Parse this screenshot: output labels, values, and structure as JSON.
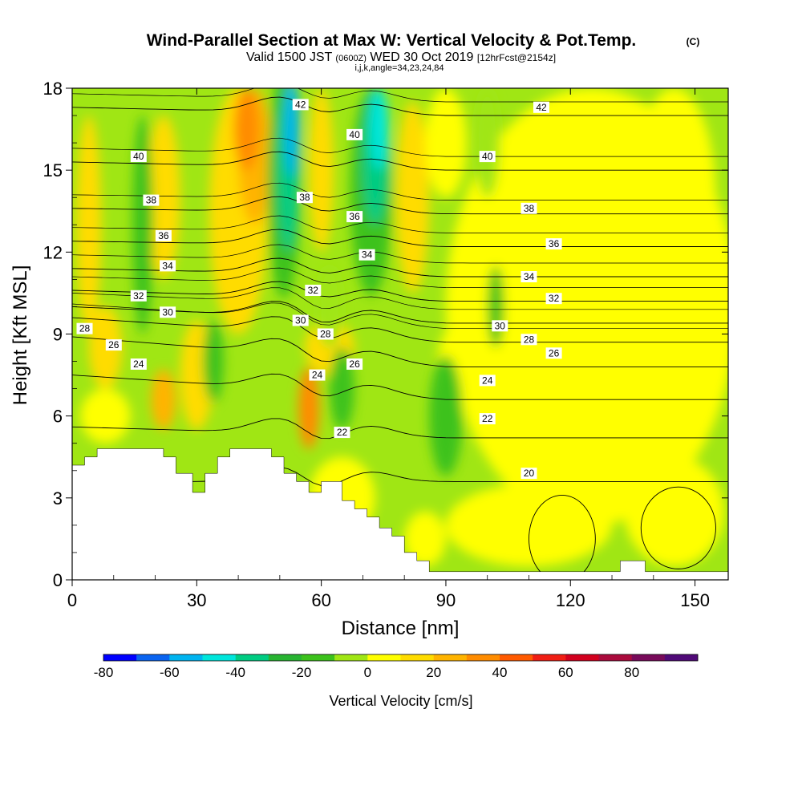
{
  "header": {
    "title": "Wind-Parallel Section at Max W: Vertical Velocity & Pot.Temp.",
    "copyright": "(C)",
    "valid_prefix": "Valid 1500 JST",
    "valid_zulu": "(0600Z)",
    "valid_date": "WED 30 Oct 2019",
    "forecast": "[12hrFcst@2154z]",
    "indices": "i,j,k,angle=34,23,24,84"
  },
  "chart_data": {
    "type": "heatmap",
    "xlabel": "Distance [nm]",
    "ylabel": "Height [Kft MSL]",
    "xlim": [
      0,
      158
    ],
    "ylim": [
      0,
      18
    ],
    "x_ticks": [
      0,
      30,
      60,
      90,
      120,
      150
    ],
    "x_tick_labels": [
      "0",
      "30",
      "60",
      "90",
      "120",
      "150"
    ],
    "y_ticks": [
      0,
      3,
      6,
      9,
      12,
      15,
      18
    ],
    "y_tick_labels": [
      "0",
      "3",
      "6",
      "9",
      "12",
      "15",
      "18"
    ],
    "colorbar": {
      "label": "Vertical Velocity [cm/s]",
      "levels": [
        -80,
        -70,
        -60,
        -50,
        -40,
        -30,
        -20,
        -10,
        0,
        10,
        20,
        30,
        40,
        50,
        60,
        70,
        80,
        90
      ],
      "tick_values": [
        -80,
        -60,
        -40,
        -20,
        0,
        20,
        40,
        60,
        80
      ],
      "tick_labels": [
        "-80",
        "-60",
        "-40",
        "-20",
        "0",
        "20",
        "40",
        "60",
        "80"
      ],
      "colors": [
        "#0000ff",
        "#0a64f0",
        "#00b4f0",
        "#00e6dc",
        "#00cc82",
        "#28b432",
        "#3cc21c",
        "#a0e614",
        "#ffff00",
        "#ffdc00",
        "#ffb400",
        "#ff8c00",
        "#ff5a00",
        "#f01e14",
        "#d2001e",
        "#aa0a3c",
        "#780a5a",
        "#500a78"
      ]
    },
    "field": {
      "variable": "vertical velocity (cm/s)",
      "background": "10 to 0 band (light green) above the terrain, weak ascent band (yellow) east of x=90",
      "notable_features": [
        {
          "x": 52,
          "y_range": [
            9,
            18
          ],
          "w_min": -50,
          "note": "strong downdraft column"
        },
        {
          "x": 73,
          "y_range": [
            10,
            18
          ],
          "w_min": -40,
          "note": "downdraft column"
        },
        {
          "x": 42,
          "y_range": [
            11,
            18
          ],
          "w_max": 40,
          "note": "updraft column"
        },
        {
          "x": 23,
          "y_range": [
            5,
            8
          ],
          "w_max": 30,
          "note": "low-level updraft over ridge"
        },
        {
          "x": 57,
          "y_range": [
            5,
            8
          ],
          "w_max": 40,
          "note": "updraft over terrain"
        }
      ]
    },
    "contours": {
      "variable": "potential temperature (C)",
      "levels": [
        20,
        22,
        24,
        26,
        28,
        30,
        32,
        34,
        36,
        38,
        40,
        42
      ],
      "labels": [
        {
          "text": "42",
          "x": 55,
          "y": 17.4
        },
        {
          "text": "42",
          "x": 113,
          "y": 17.3
        },
        {
          "text": "40",
          "x": 16,
          "y": 15.5
        },
        {
          "text": "40",
          "x": 68,
          "y": 16.3
        },
        {
          "text": "40",
          "x": 100,
          "y": 15.5
        },
        {
          "text": "38",
          "x": 19,
          "y": 13.9
        },
        {
          "text": "38",
          "x": 56,
          "y": 14.0
        },
        {
          "text": "38",
          "x": 110,
          "y": 13.6
        },
        {
          "text": "36",
          "x": 22,
          "y": 12.6
        },
        {
          "text": "36",
          "x": 68,
          "y": 13.3
        },
        {
          "text": "36",
          "x": 116,
          "y": 12.3
        },
        {
          "text": "34",
          "x": 23,
          "y": 11.5
        },
        {
          "text": "34",
          "x": 71,
          "y": 11.9
        },
        {
          "text": "34",
          "x": 110,
          "y": 11.1
        },
        {
          "text": "32",
          "x": 16,
          "y": 10.4
        },
        {
          "text": "32",
          "x": 58,
          "y": 10.6
        },
        {
          "text": "32",
          "x": 116,
          "y": 10.3
        },
        {
          "text": "30",
          "x": 23,
          "y": 9.8
        },
        {
          "text": "30",
          "x": 55,
          "y": 9.5
        },
        {
          "text": "30",
          "x": 103,
          "y": 9.3
        },
        {
          "text": "28",
          "x": 3,
          "y": 9.2
        },
        {
          "text": "28",
          "x": 61,
          "y": 9.0
        },
        {
          "text": "28",
          "x": 110,
          "y": 8.8
        },
        {
          "text": "26",
          "x": 10,
          "y": 8.6
        },
        {
          "text": "26",
          "x": 68,
          "y": 7.9
        },
        {
          "text": "26",
          "x": 116,
          "y": 8.3
        },
        {
          "text": "24",
          "x": 16,
          "y": 7.9
        },
        {
          "text": "24",
          "x": 59,
          "y": 7.5
        },
        {
          "text": "24",
          "x": 100,
          "y": 7.3
        },
        {
          "text": "22",
          "x": 65,
          "y": 5.4
        },
        {
          "text": "22",
          "x": 100,
          "y": 5.9
        },
        {
          "text": "20",
          "x": 110,
          "y": 3.9
        }
      ]
    },
    "terrain": {
      "profile": [
        [
          0,
          4.2
        ],
        [
          3,
          4.2
        ],
        [
          3,
          4.5
        ],
        [
          6,
          4.5
        ],
        [
          6,
          4.8
        ],
        [
          22,
          4.8
        ],
        [
          22,
          4.5
        ],
        [
          25,
          4.5
        ],
        [
          25,
          3.9
        ],
        [
          29,
          3.9
        ],
        [
          29,
          3.2
        ],
        [
          32,
          3.2
        ],
        [
          32,
          3.9
        ],
        [
          35,
          3.9
        ],
        [
          35,
          4.5
        ],
        [
          38,
          4.5
        ],
        [
          38,
          4.8
        ],
        [
          48,
          4.8
        ],
        [
          48,
          4.5
        ],
        [
          51,
          4.5
        ],
        [
          51,
          3.9
        ],
        [
          54,
          3.9
        ],
        [
          54,
          3.6
        ],
        [
          57,
          3.6
        ],
        [
          57,
          3.2
        ],
        [
          60,
          3.2
        ],
        [
          60,
          3.6
        ],
        [
          65,
          3.6
        ],
        [
          65,
          2.9
        ],
        [
          68,
          2.9
        ],
        [
          68,
          2.6
        ],
        [
          71,
          2.6
        ],
        [
          71,
          2.3
        ],
        [
          74,
          2.3
        ],
        [
          74,
          1.9
        ],
        [
          77,
          1.9
        ],
        [
          77,
          1.6
        ],
        [
          80,
          1.6
        ],
        [
          80,
          1.0
        ],
        [
          83,
          1.0
        ],
        [
          83,
          0.7
        ],
        [
          86,
          0.7
        ],
        [
          86,
          0.3
        ],
        [
          132,
          0.3
        ],
        [
          132,
          0.7
        ],
        [
          138,
          0.7
        ],
        [
          138,
          0.3
        ],
        [
          158,
          0.3
        ],
        [
          158,
          0
        ]
      ]
    }
  }
}
